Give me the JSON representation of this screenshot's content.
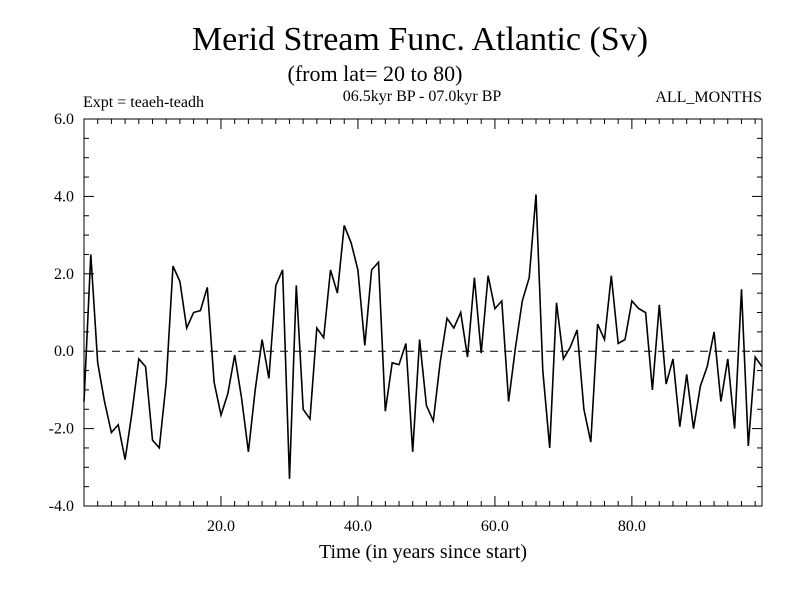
{
  "chart_data": {
    "type": "line",
    "title": "Merid Stream Func. Atlantic (Sv)",
    "subtitle": "(from lat= 20 to 80)",
    "expt_label": "Expt = teaeh-teadh",
    "period_label": "06.5kyr BP - 07.0kyr BP",
    "months_label": "ALL_MONTHS",
    "xlabel": "Time (in years since start)",
    "ylabel": "",
    "xlim": [
      0,
      99
    ],
    "ylim": [
      -4.0,
      6.0
    ],
    "x_ticks": [
      20,
      40,
      60,
      80
    ],
    "x_tick_labels": [
      "20.0",
      "40.0",
      "60.0",
      "80.0"
    ],
    "y_ticks": [
      -4,
      -2,
      0,
      2,
      4,
      6
    ],
    "y_tick_labels": [
      "-4.0",
      "-2.0",
      "0.0",
      "2.0",
      "4.0",
      "6.0"
    ],
    "reference_line": 0.0,
    "series": [
      {
        "name": "Merid Stream Func.",
        "x": [
          0,
          1,
          2,
          3,
          4,
          5,
          6,
          7,
          8,
          9,
          10,
          11,
          12,
          13,
          14,
          15,
          16,
          17,
          18,
          19,
          20,
          21,
          22,
          23,
          24,
          25,
          26,
          27,
          28,
          29,
          30,
          31,
          32,
          33,
          34,
          35,
          36,
          37,
          38,
          39,
          40,
          41,
          42,
          43,
          44,
          45,
          46,
          47,
          48,
          49,
          50,
          51,
          52,
          53,
          54,
          55,
          56,
          57,
          58,
          59,
          60,
          61,
          62,
          63,
          64,
          65,
          66,
          67,
          68,
          69,
          70,
          71,
          72,
          73,
          74,
          75,
          76,
          77,
          78,
          79,
          80,
          81,
          82,
          83,
          84,
          85,
          86,
          87,
          88,
          89,
          90,
          91,
          92,
          93,
          94,
          95,
          96,
          97,
          98,
          99
        ],
        "values": [
          -1.3,
          2.5,
          -0.3,
          -1.3,
          -2.1,
          -1.9,
          -2.8,
          -1.6,
          -0.2,
          -0.4,
          -2.3,
          -2.5,
          -0.8,
          2.2,
          1.8,
          0.6,
          1.0,
          1.05,
          1.65,
          -0.8,
          -1.65,
          -1.1,
          -0.1,
          -1.2,
          -2.6,
          -1.0,
          0.3,
          -0.7,
          1.7,
          2.1,
          -3.3,
          1.7,
          -1.5,
          -1.75,
          0.6,
          0.35,
          2.1,
          1.5,
          3.25,
          2.8,
          2.1,
          0.15,
          2.1,
          2.3,
          -1.55,
          -0.3,
          -0.35,
          0.2,
          -2.6,
          0.3,
          -1.4,
          -1.8,
          -0.3,
          0.85,
          0.6,
          1.0,
          -0.15,
          1.9,
          -0.05,
          1.95,
          1.1,
          1.3,
          -1.3,
          0.1,
          1.3,
          1.9,
          4.05,
          -0.5,
          -2.5,
          1.25,
          -0.2,
          0.1,
          0.55,
          -1.5,
          -2.35,
          0.7,
          0.3,
          1.95,
          0.2,
          0.3,
          1.3,
          1.1,
          1.0,
          -1.0,
          1.2,
          -0.85,
          -0.2,
          -1.95,
          -0.6,
          -2.0,
          -0.9,
          -0.4,
          0.5,
          -1.3,
          -0.2,
          -2.0,
          1.6,
          -2.45,
          -0.15,
          -0.4
        ]
      }
    ]
  }
}
